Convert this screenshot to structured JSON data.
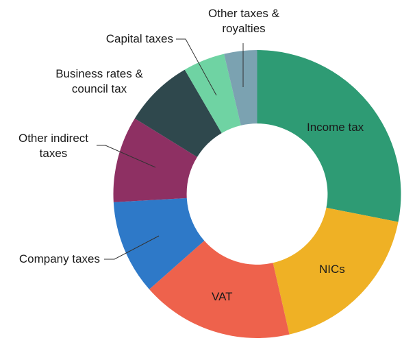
{
  "chart_data": {
    "type": "pie",
    "subtype": "donut",
    "title": "",
    "legend_position": "none",
    "direction": "clockwise",
    "start_angle_deg": 0,
    "inner_radius_ratio": 0.49,
    "values_unit": "percent_of_total",
    "values_estimated_from_arc_angles": true,
    "labels_color": "#1a1a1a",
    "background_color": "#ffffff",
    "slices": [
      {
        "label": "Income tax",
        "value": 28.1,
        "color": "#2E9B74",
        "label_placement": "inside"
      },
      {
        "label": "NICs",
        "value": 18.3,
        "color": "#EFB125",
        "label_placement": "inside"
      },
      {
        "label": "VAT",
        "value": 17.1,
        "color": "#EE624C",
        "label_placement": "inside"
      },
      {
        "label": "Company taxes",
        "value": 10.6,
        "color": "#2E79C8",
        "label_placement": "outside"
      },
      {
        "label": "Other indirect taxes",
        "value": 9.7,
        "color": "#8E3063",
        "label_placement": "outside"
      },
      {
        "label": "Business rates & council tax",
        "value": 7.8,
        "color": "#2F484D",
        "label_placement": "outside"
      },
      {
        "label": "Capital taxes",
        "value": 4.7,
        "color": "#6FD3A3",
        "label_placement": "outside"
      },
      {
        "label": "Other taxes & royalties",
        "value": 3.7,
        "color": "#7BA2B1",
        "label_placement": "outside"
      }
    ]
  }
}
